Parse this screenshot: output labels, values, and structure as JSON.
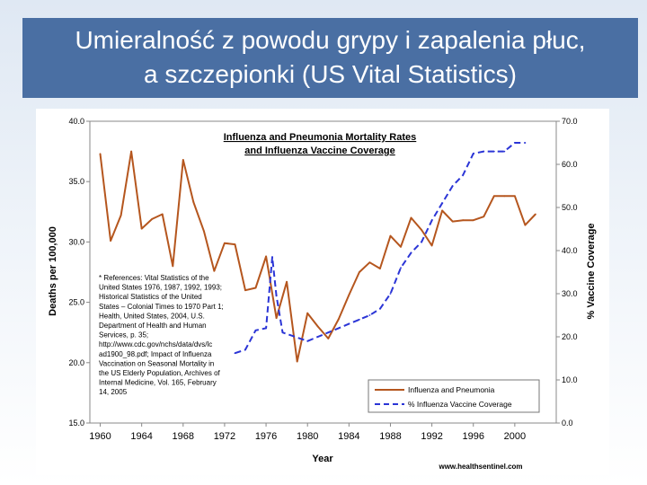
{
  "slide": {
    "title_line1": "Umieralność z powodu grypy i zapalenia płuc,",
    "title_line2": "a szczepionki (US Vital Statistics)"
  },
  "chart_data": {
    "type": "line",
    "title_line1": "Influenza and Pneumonia Mortality Rates",
    "title_line2": "and Influenza Vaccine Coverage",
    "xlabel": "Year",
    "ylabel": "Deaths per 100,000",
    "y2label": "% Vaccine Coverage",
    "xlim": [
      1959,
      2004
    ],
    "ylim": [
      15,
      40
    ],
    "y2lim": [
      0,
      70
    ],
    "x_ticks": [
      "1960",
      "1964",
      "1968",
      "1972",
      "1976",
      "1980",
      "1984",
      "1988",
      "1992",
      "1996",
      "2000"
    ],
    "y_ticks": [
      "15.0",
      "20.0",
      "25.0",
      "30.0",
      "35.0",
      "40.0"
    ],
    "y2_ticks": [
      "0.0",
      "10.0",
      "20.0",
      "30.0",
      "40.0",
      "50.0",
      "60.0",
      "70.0"
    ],
    "series": [
      {
        "name": "Influenza and Pneumonia",
        "axis": "left",
        "color": "#b5561e",
        "style": "solid",
        "x": [
          1960,
          1961,
          1962,
          1963,
          1964,
          1965,
          1966,
          1967,
          1968,
          1969,
          1970,
          1971,
          1972,
          1973,
          1974,
          1975,
          1976,
          1977,
          1978,
          1979,
          1980,
          1981,
          1982,
          1983,
          1984,
          1985,
          1986,
          1987,
          1988,
          1989,
          1990,
          1991,
          1992,
          1993,
          1994,
          1995,
          1996,
          1997,
          1998,
          1999,
          2000,
          2001,
          2002
        ],
        "y": [
          37.3,
          30.1,
          32.2,
          37.5,
          31.1,
          31.9,
          32.3,
          28.0,
          36.8,
          33.3,
          30.9,
          27.6,
          29.9,
          29.8,
          26.0,
          26.2,
          28.8,
          23.7,
          26.7,
          20.1,
          24.1,
          23.0,
          22.0,
          23.6,
          25.6,
          27.5,
          28.3,
          27.8,
          30.5,
          29.6,
          32.0,
          31.0,
          29.7,
          32.6,
          31.7,
          31.8,
          31.8,
          32.1,
          33.8,
          33.8,
          33.8,
          31.4,
          32.3
        ]
      },
      {
        "name": "% Influenza Vaccine Coverage",
        "axis": "right",
        "color": "#2b35d6",
        "style": "dashed",
        "x": [
          1973,
          1974,
          1975,
          1976,
          1976.6,
          1977,
          1977.6,
          1980,
          1981,
          1982,
          1983,
          1984,
          1985,
          1986,
          1987,
          1988,
          1989,
          1990,
          1991,
          1992,
          1993,
          1994,
          1995,
          1996,
          1997,
          1998,
          1999,
          2000,
          2001
        ],
        "y": [
          16.2,
          17.0,
          21.5,
          22.0,
          38.5,
          29.5,
          21.0,
          19.0,
          20.0,
          21.0,
          22.0,
          23.0,
          24.0,
          25.0,
          26.5,
          30.0,
          36.0,
          39.5,
          42.0,
          47.0,
          51.0,
          55.0,
          57.5,
          62.5,
          63.0,
          63.0,
          63.0,
          65.0,
          65.0
        ]
      }
    ],
    "references": [
      "* References: Vital Statistics of the",
      "United States 1976, 1987, 1992, 1993;",
      "Historical Statistics of the United",
      "States – Colonial Times to 1970 Part 1;",
      "Health, United States, 2004, U.S.",
      "Department of Health and Human",
      "Services, p. 35;",
      "http://www.cdc.gov/nchs/data/dvs/lc",
      "ad1900_98.pdf; Impact of Influenza",
      "Vaccination on Seasonal Mortality in",
      "the US Elderly Population, Archives of",
      "Internal Medicine, Vol. 165, February",
      "14, 2005"
    ],
    "legend_position": "bottom-right",
    "source": "www.healthsentinel.com"
  }
}
